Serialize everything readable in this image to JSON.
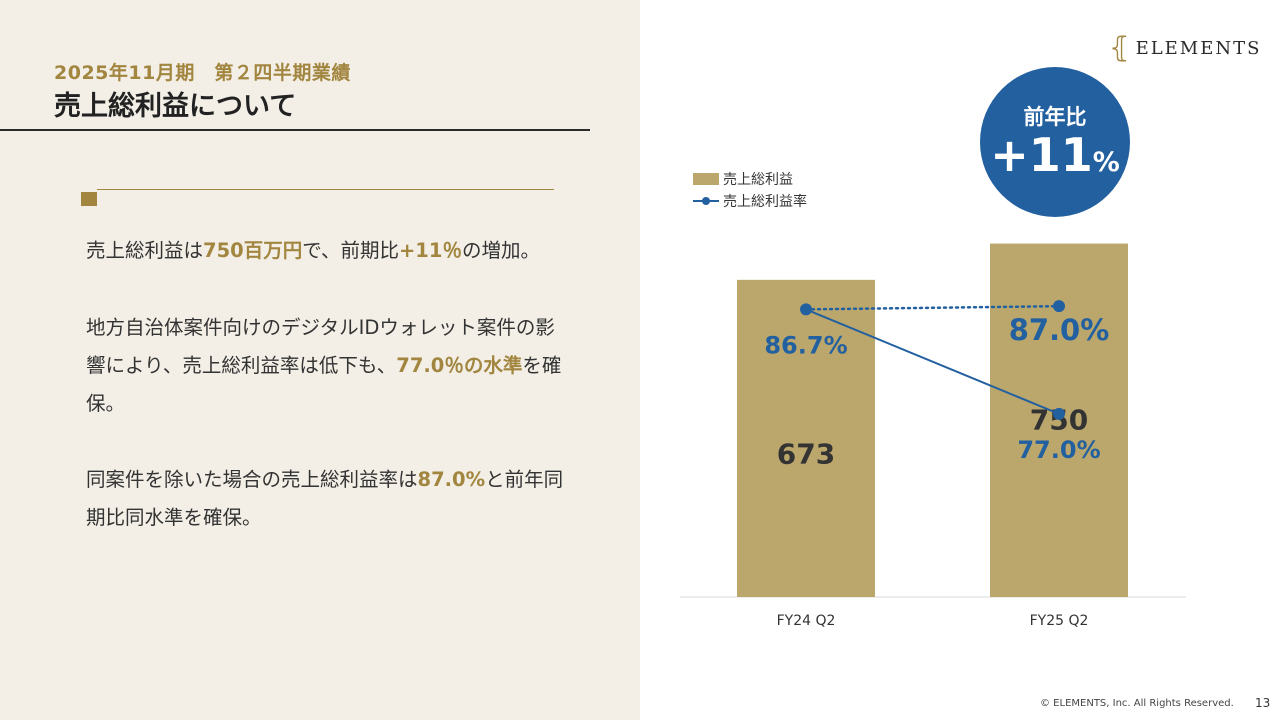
{
  "header": {
    "subtitle": "2025年11月期　第２四半期業績",
    "title": "売上総利益について"
  },
  "brand": {
    "logo_mark": "⦃",
    "logo_text": "ELEMENTS"
  },
  "body": {
    "p1": [
      "売上総利益は",
      "750百万円",
      "で、前期比",
      "+11％",
      "の増加。"
    ],
    "p2": [
      "地方自治体案件向けのデジタルIDウォレット案件の影響により、売上総利益率は低下も、",
      "77.0％の水準",
      "を確保。"
    ],
    "p3": [
      "同案件を除いた場合の売上総利益率は",
      "87.0%",
      "と前年同期比同水準を確保。"
    ]
  },
  "badge": {
    "label": "前年比",
    "value": "+11",
    "unit": "%"
  },
  "legend": {
    "bar_label": "売上総利益",
    "line_label": "売上総利益率"
  },
  "chart_data": {
    "type": "bar",
    "categories": [
      "FY24 Q2",
      "FY25 Q2"
    ],
    "series": [
      {
        "name": "売上総利益",
        "type": "bar",
        "values": [
          673,
          750
        ],
        "labels": [
          "673",
          "750"
        ],
        "color": "#bba76c"
      },
      {
        "name": "売上総利益率",
        "type": "line",
        "values": [
          86.7,
          77.0
        ],
        "labels": [
          "86.7%",
          "77.0%"
        ],
        "color": "#2360a0"
      },
      {
        "name": "",
        "type": "line",
        "style": "dotted",
        "values": [
          86.7,
          87.0
        ],
        "labels": [
          "",
          "87.0%"
        ],
        "color": "#2360a0"
      }
    ],
    "bar_ylim": [
      0,
      800
    ],
    "line_ylim": [
      60,
      95
    ],
    "grid": false
  },
  "footer": {
    "copyright": "© ELEMENTS, Inc. All Rights Reserved.",
    "page": "13"
  }
}
